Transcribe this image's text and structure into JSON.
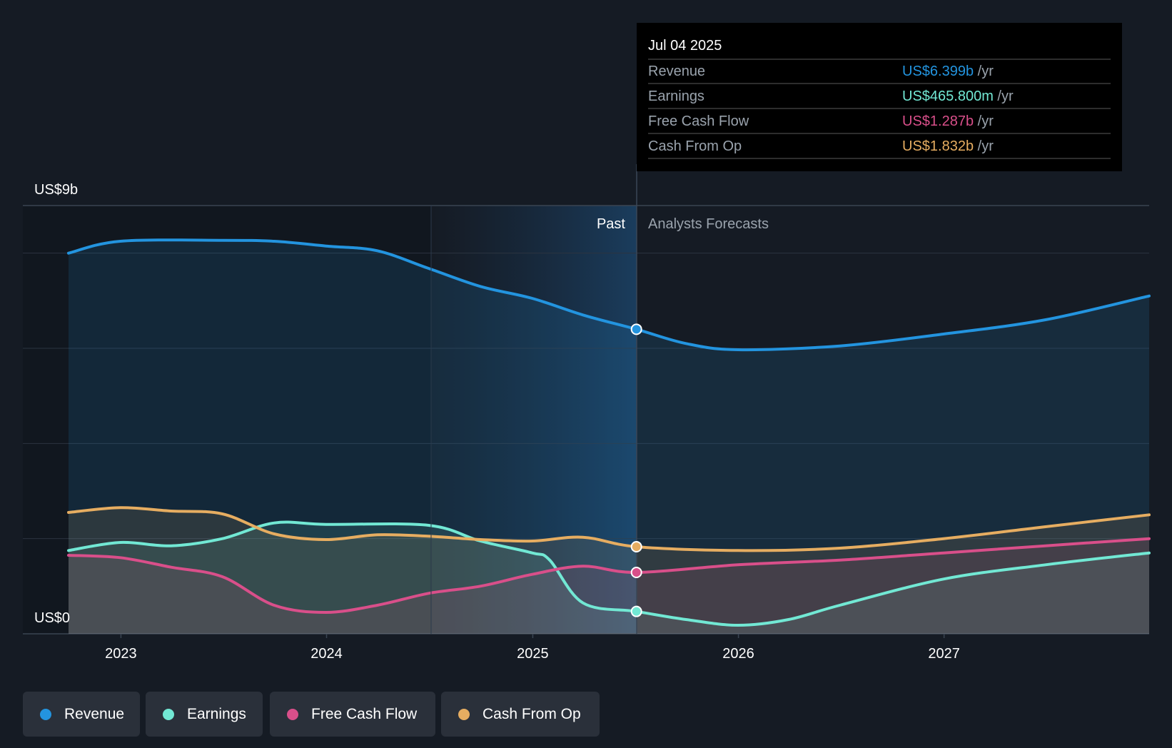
{
  "chart_data": {
    "type": "area",
    "y_axis": {
      "top_label": "US$9b",
      "bottom_label": "US$0",
      "ylim": [
        0,
        9
      ]
    },
    "x_axis": {
      "ticks": [
        "2023",
        "2024",
        "2025",
        "2026",
        "2027"
      ],
      "range": [
        "2022-09-30",
        "2027-12-31"
      ]
    },
    "dividers": {
      "past_label": "Past",
      "forecast_label": "Analysts Forecasts",
      "present_date": "2025-07-04"
    },
    "series": [
      {
        "name": "Revenue",
        "color": "#2394df",
        "points": [
          [
            "2022-09-30",
            8.0
          ],
          [
            "2022-12-31",
            8.25
          ],
          [
            "2023-07-01",
            8.27
          ],
          [
            "2023-09-30",
            8.25
          ],
          [
            "2023-12-31",
            8.15
          ],
          [
            "2024-03-31",
            8.05
          ],
          [
            "2024-06-30",
            7.68
          ],
          [
            "2024-09-30",
            7.3
          ],
          [
            "2024-12-31",
            7.05
          ],
          [
            "2025-03-31",
            6.7
          ],
          [
            "2025-07-04",
            6.4
          ],
          [
            "2025-09-30",
            6.1
          ],
          [
            "2025-12-31",
            5.97
          ],
          [
            "2026-06-30",
            6.05
          ],
          [
            "2026-12-31",
            6.3
          ],
          [
            "2027-06-30",
            6.6
          ],
          [
            "2027-12-31",
            7.1
          ]
        ]
      },
      {
        "name": "Earnings",
        "color": "#72e8d4",
        "points": [
          [
            "2022-09-30",
            1.75
          ],
          [
            "2022-12-31",
            1.92
          ],
          [
            "2023-03-31",
            1.85
          ],
          [
            "2023-06-30",
            2.0
          ],
          [
            "2023-09-30",
            2.33
          ],
          [
            "2023-12-31",
            2.3
          ],
          [
            "2024-06-30",
            2.28
          ],
          [
            "2024-09-30",
            1.95
          ],
          [
            "2024-12-31",
            1.7
          ],
          [
            "2025-01-31",
            1.55
          ],
          [
            "2025-03-31",
            0.65
          ],
          [
            "2025-07-04",
            0.47
          ],
          [
            "2025-09-30",
            0.3
          ],
          [
            "2025-12-31",
            0.18
          ],
          [
            "2026-03-31",
            0.3
          ],
          [
            "2026-06-30",
            0.6
          ],
          [
            "2026-12-31",
            1.15
          ],
          [
            "2027-06-30",
            1.45
          ],
          [
            "2027-12-31",
            1.7
          ]
        ]
      },
      {
        "name": "Free Cash Flow",
        "color": "#d94f8a",
        "points": [
          [
            "2022-09-30",
            1.65
          ],
          [
            "2022-12-31",
            1.6
          ],
          [
            "2023-03-31",
            1.4
          ],
          [
            "2023-06-30",
            1.2
          ],
          [
            "2023-09-30",
            0.6
          ],
          [
            "2023-12-31",
            0.45
          ],
          [
            "2024-03-31",
            0.6
          ],
          [
            "2024-06-30",
            0.85
          ],
          [
            "2024-09-30",
            1.0
          ],
          [
            "2024-12-31",
            1.25
          ],
          [
            "2025-03-31",
            1.42
          ],
          [
            "2025-07-04",
            1.29
          ],
          [
            "2025-12-31",
            1.45
          ],
          [
            "2026-06-30",
            1.55
          ],
          [
            "2026-12-31",
            1.7
          ],
          [
            "2027-06-30",
            1.85
          ],
          [
            "2027-12-31",
            2.0
          ]
        ]
      },
      {
        "name": "Cash From Op",
        "color": "#e6ad61",
        "points": [
          [
            "2022-09-30",
            2.55
          ],
          [
            "2022-12-31",
            2.65
          ],
          [
            "2023-03-31",
            2.58
          ],
          [
            "2023-06-30",
            2.52
          ],
          [
            "2023-09-30",
            2.1
          ],
          [
            "2023-12-31",
            1.98
          ],
          [
            "2024-03-31",
            2.08
          ],
          [
            "2024-06-30",
            2.05
          ],
          [
            "2024-09-30",
            1.98
          ],
          [
            "2024-12-31",
            1.95
          ],
          [
            "2025-03-31",
            2.03
          ],
          [
            "2025-07-04",
            1.83
          ],
          [
            "2025-12-31",
            1.75
          ],
          [
            "2026-06-30",
            1.8
          ],
          [
            "2026-12-31",
            2.0
          ],
          [
            "2027-06-30",
            2.25
          ],
          [
            "2027-12-31",
            2.5
          ]
        ]
      }
    ]
  },
  "tooltip": {
    "date": "Jul 04 2025",
    "rows": [
      {
        "label": "Revenue",
        "value": "US$6.399b",
        "unit": "/yr",
        "color": "#2394df"
      },
      {
        "label": "Earnings",
        "value": "US$465.800m",
        "unit": "/yr",
        "color": "#72e8d4"
      },
      {
        "label": "Free Cash Flow",
        "value": "US$1.287b",
        "unit": "/yr",
        "color": "#d94f8a"
      },
      {
        "label": "Cash From Op",
        "value": "US$1.832b",
        "unit": "/yr",
        "color": "#e6ad61"
      }
    ]
  },
  "legend": [
    {
      "label": "Revenue",
      "color": "#2394df"
    },
    {
      "label": "Earnings",
      "color": "#72e8d4"
    },
    {
      "label": "Free Cash Flow",
      "color": "#d94f8a"
    },
    {
      "label": "Cash From Op",
      "color": "#e6ad61"
    }
  ]
}
